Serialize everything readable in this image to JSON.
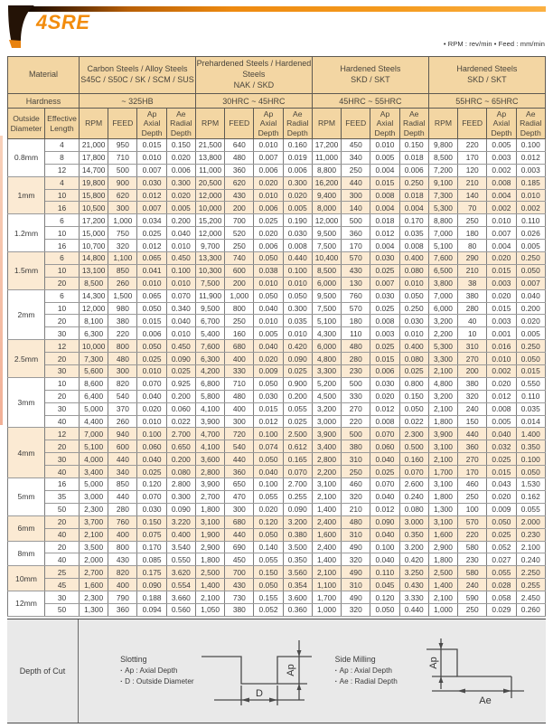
{
  "header": {
    "logo_text": "4SRE",
    "units_note": "• RPM : rev/min  • Feed : mm/min"
  },
  "colors": {
    "brand_orange": "#F28C0D",
    "header_tan": "#F3D6A3",
    "row_peach": "#FBEAD3"
  },
  "table": {
    "material_label": "Material",
    "hardness_label": "Hardness",
    "outside_diameter_label": "Outside\nDiameter",
    "effective_length_label": "Effective\nLength",
    "groups": [
      {
        "material": "Carbon Steels / Alloy Steels\nS45C / S50C / SK / SCM / SUS",
        "hardness": "~ 325HB"
      },
      {
        "material": "Prehardened Steels / Hardened\nSteels\nNAK / SKD",
        "hardness": "30HRC ~ 45HRC"
      },
      {
        "material": "Hardened Steels\nSKD / SKT",
        "hardness": "45HRC ~ 55HRC"
      },
      {
        "material": "Hardened Steels\nSKD / SKT",
        "hardness": "55HRC ~ 65HRC"
      }
    ],
    "subcolumns": [
      "RPM",
      "FEED",
      "Ap\nAxial\nDepth",
      "Ae\nRadial\nDepth"
    ],
    "rows": [
      {
        "diameter": "0.8mm",
        "entries": [
          {
            "len": "4",
            "v": [
              "21,000",
              "950",
              "0.015",
              "0.150",
              "21,500",
              "640",
              "0.010",
              "0.160",
              "17,200",
              "450",
              "0.010",
              "0.150",
              "9,800",
              "220",
              "0.005",
              "0.100"
            ]
          },
          {
            "len": "8",
            "v": [
              "17,800",
              "710",
              "0.010",
              "0.020",
              "13,800",
              "480",
              "0.007",
              "0.019",
              "11,000",
              "340",
              "0.005",
              "0.018",
              "8,500",
              "170",
              "0.003",
              "0.012"
            ]
          },
          {
            "len": "12",
            "v": [
              "14,700",
              "500",
              "0.007",
              "0.006",
              "11,000",
              "360",
              "0.006",
              "0.006",
              "8,800",
              "250",
              "0.004",
              "0.006",
              "7,200",
              "120",
              "0.002",
              "0.003"
            ]
          }
        ]
      },
      {
        "diameter": "1mm",
        "entries": [
          {
            "len": "4",
            "v": [
              "19,800",
              "900",
              "0.030",
              "0.300",
              "20,500",
              "620",
              "0.020",
              "0.300",
              "16,200",
              "440",
              "0.015",
              "0.250",
              "9,100",
              "210",
              "0.008",
              "0.185"
            ]
          },
          {
            "len": "10",
            "v": [
              "15,800",
              "620",
              "0.012",
              "0.020",
              "12,000",
              "430",
              "0.010",
              "0.020",
              "9,400",
              "300",
              "0.008",
              "0.018",
              "7,300",
              "140",
              "0.004",
              "0.010"
            ]
          },
          {
            "len": "16",
            "v": [
              "10,500",
              "300",
              "0.007",
              "0.005",
              "10,000",
              "200",
              "0.006",
              "0.005",
              "8,000",
              "140",
              "0.004",
              "0.004",
              "5,300",
              "70",
              "0.002",
              "0.002"
            ]
          }
        ]
      },
      {
        "diameter": "1.2mm",
        "entries": [
          {
            "len": "6",
            "v": [
              "17,200",
              "1,000",
              "0.034",
              "0.200",
              "15,200",
              "700",
              "0.025",
              "0.190",
              "12,000",
              "500",
              "0.018",
              "0.170",
              "8,800",
              "250",
              "0.010",
              "0.110"
            ]
          },
          {
            "len": "10",
            "v": [
              "15,000",
              "750",
              "0.025",
              "0.040",
              "12,000",
              "520",
              "0.020",
              "0.030",
              "9,500",
              "360",
              "0.012",
              "0.035",
              "7,000",
              "180",
              "0.007",
              "0.026"
            ]
          },
          {
            "len": "16",
            "v": [
              "10,700",
              "320",
              "0.012",
              "0.010",
              "9,700",
              "250",
              "0.006",
              "0.008",
              "7,500",
              "170",
              "0.004",
              "0.008",
              "5,100",
              "80",
              "0.004",
              "0.005"
            ]
          }
        ]
      },
      {
        "diameter": "1.5mm",
        "entries": [
          {
            "len": "6",
            "v": [
              "14,800",
              "1,100",
              "0.065",
              "0.450",
              "13,300",
              "740",
              "0.050",
              "0.440",
              "10,400",
              "570",
              "0.030",
              "0.400",
              "7,600",
              "290",
              "0.020",
              "0.250"
            ]
          },
          {
            "len": "10",
            "v": [
              "13,100",
              "850",
              "0.041",
              "0.100",
              "10,300",
              "600",
              "0.038",
              "0.100",
              "8,500",
              "430",
              "0.025",
              "0.080",
              "6,500",
              "210",
              "0.015",
              "0.050"
            ]
          },
          {
            "len": "20",
            "v": [
              "8,500",
              "260",
              "0.010",
              "0.010",
              "7,500",
              "200",
              "0.010",
              "0.010",
              "6,000",
              "130",
              "0.007",
              "0.010",
              "3,800",
              "38",
              "0.003",
              "0.007"
            ]
          }
        ]
      },
      {
        "diameter": "2mm",
        "entries": [
          {
            "len": "6",
            "v": [
              "14,300",
              "1,500",
              "0.065",
              "0.070",
              "11,900",
              "1,000",
              "0.050",
              "0.050",
              "9,500",
              "760",
              "0.030",
              "0.050",
              "7,000",
              "380",
              "0.020",
              "0.040"
            ]
          },
          {
            "len": "10",
            "v": [
              "12,000",
              "980",
              "0.050",
              "0.340",
              "9,500",
              "800",
              "0.040",
              "0.300",
              "7,500",
              "570",
              "0.025",
              "0.250",
              "6,000",
              "280",
              "0.015",
              "0.200"
            ]
          },
          {
            "len": "20",
            "v": [
              "8,100",
              "380",
              "0.015",
              "0.040",
              "6,700",
              "250",
              "0.010",
              "0.035",
              "5,100",
              "180",
              "0.008",
              "0.030",
              "3,200",
              "40",
              "0.003",
              "0.020"
            ]
          },
          {
            "len": "30",
            "v": [
              "6,300",
              "220",
              "0.006",
              "0.010",
              "5,400",
              "160",
              "0.005",
              "0.010",
              "4,300",
              "110",
              "0.003",
              "0.010",
              "2,200",
              "10",
              "0.001",
              "0.005"
            ]
          }
        ]
      },
      {
        "diameter": "2.5mm",
        "entries": [
          {
            "len": "12",
            "v": [
              "10,000",
              "800",
              "0.050",
              "0.450",
              "7,600",
              "680",
              "0.040",
              "0.420",
              "6,000",
              "480",
              "0.025",
              "0.400",
              "5,300",
              "310",
              "0.016",
              "0.250"
            ]
          },
          {
            "len": "20",
            "v": [
              "7,300",
              "480",
              "0.025",
              "0.090",
              "6,300",
              "400",
              "0.020",
              "0.090",
              "4,800",
              "280",
              "0.015",
              "0.080",
              "3,300",
              "270",
              "0.010",
              "0.050"
            ]
          },
          {
            "len": "30",
            "v": [
              "5,600",
              "300",
              "0.010",
              "0.025",
              "4,200",
              "330",
              "0.009",
              "0.025",
              "3,300",
              "230",
              "0.006",
              "0.025",
              "2,100",
              "200",
              "0.002",
              "0.015"
            ]
          }
        ]
      },
      {
        "diameter": "3mm",
        "entries": [
          {
            "len": "10",
            "v": [
              "8,600",
              "820",
              "0.070",
              "0.925",
              "6,800",
              "710",
              "0.050",
              "0.900",
              "5,200",
              "500",
              "0.030",
              "0.800",
              "4,800",
              "380",
              "0.020",
              "0.550"
            ]
          },
          {
            "len": "20",
            "v": [
              "6,400",
              "540",
              "0.040",
              "0.200",
              "5,800",
              "480",
              "0.030",
              "0.200",
              "4,500",
              "330",
              "0.020",
              "0.150",
              "3,200",
              "320",
              "0.012",
              "0.110"
            ]
          },
          {
            "len": "30",
            "v": [
              "5,000",
              "370",
              "0.020",
              "0.060",
              "4,100",
              "400",
              "0.015",
              "0.055",
              "3,200",
              "270",
              "0.012",
              "0.050",
              "2,100",
              "240",
              "0.008",
              "0.035"
            ]
          },
          {
            "len": "40",
            "v": [
              "4,400",
              "260",
              "0.010",
              "0.022",
              "3,900",
              "300",
              "0.012",
              "0.025",
              "3,000",
              "220",
              "0.008",
              "0.022",
              "1,800",
              "150",
              "0.005",
              "0.014"
            ]
          }
        ]
      },
      {
        "diameter": "4mm",
        "entries": [
          {
            "len": "12",
            "v": [
              "7,000",
              "940",
              "0.100",
              "2.700",
              "4,700",
              "720",
              "0.100",
              "2.500",
              "3,900",
              "500",
              "0.070",
              "2.300",
              "3,900",
              "440",
              "0.040",
              "1.400"
            ]
          },
          {
            "len": "20",
            "v": [
              "5,100",
              "600",
              "0.060",
              "0.650",
              "4,100",
              "540",
              "0.074",
              "0.612",
              "3,400",
              "380",
              "0.060",
              "0.500",
              "3,100",
              "360",
              "0.032",
              "0.350"
            ]
          },
          {
            "len": "30",
            "v": [
              "4,000",
              "440",
              "0.040",
              "0.200",
              "3,600",
              "440",
              "0.050",
              "0.165",
              "2,800",
              "310",
              "0.040",
              "0.160",
              "2,100",
              "270",
              "0.025",
              "0.100"
            ]
          },
          {
            "len": "40",
            "v": [
              "3,400",
              "340",
              "0.025",
              "0.080",
              "2,800",
              "360",
              "0.040",
              "0.070",
              "2,200",
              "250",
              "0.025",
              "0.070",
              "1,700",
              "170",
              "0.015",
              "0.050"
            ]
          }
        ]
      },
      {
        "diameter": "5mm",
        "entries": [
          {
            "len": "16",
            "v": [
              "5,000",
              "850",
              "0.120",
              "2.800",
              "3,900",
              "650",
              "0.100",
              "2.700",
              "3,100",
              "460",
              "0.070",
              "2.600",
              "3,100",
              "460",
              "0.043",
              "1.530"
            ]
          },
          {
            "len": "35",
            "v": [
              "3,000",
              "440",
              "0.070",
              "0.300",
              "2,700",
              "470",
              "0.055",
              "0.255",
              "2,100",
              "320",
              "0.040",
              "0.240",
              "1,800",
              "250",
              "0.020",
              "0.162"
            ]
          },
          {
            "len": "50",
            "v": [
              "2,300",
              "280",
              "0.030",
              "0.090",
              "1,800",
              "300",
              "0.020",
              "0.090",
              "1,400",
              "210",
              "0.012",
              "0.080",
              "1,300",
              "100",
              "0.009",
              "0.055"
            ]
          }
        ]
      },
      {
        "diameter": "6mm",
        "entries": [
          {
            "len": "20",
            "v": [
              "3,700",
              "760",
              "0.150",
              "3.220",
              "3,100",
              "680",
              "0.120",
              "3.200",
              "2,400",
              "480",
              "0.090",
              "3.000",
              "3,100",
              "570",
              "0.050",
              "2.000"
            ]
          },
          {
            "len": "40",
            "v": [
              "2,100",
              "400",
              "0.075",
              "0.400",
              "1,900",
              "440",
              "0.050",
              "0.380",
              "1,600",
              "310",
              "0.040",
              "0.350",
              "1,600",
              "220",
              "0.025",
              "0.230"
            ]
          }
        ]
      },
      {
        "diameter": "8mm",
        "entries": [
          {
            "len": "20",
            "v": [
              "3,500",
              "800",
              "0.170",
              "3.540",
              "2,900",
              "690",
              "0.140",
              "3.500",
              "2,400",
              "490",
              "0.100",
              "3.200",
              "2,900",
              "580",
              "0.052",
              "2.100"
            ]
          },
          {
            "len": "40",
            "v": [
              "2,000",
              "430",
              "0.085",
              "0.550",
              "1,800",
              "450",
              "0.055",
              "0.350",
              "1,400",
              "320",
              "0.040",
              "0.420",
              "1,800",
              "230",
              "0.027",
              "0.240"
            ]
          }
        ]
      },
      {
        "diameter": "10mm",
        "entries": [
          {
            "len": "25",
            "v": [
              "2,700",
              "820",
              "0.175",
              "3.620",
              "2,500",
              "700",
              "0.150",
              "3.560",
              "2,100",
              "490",
              "0.110",
              "3.250",
              "2,500",
              "580",
              "0.055",
              "2.250"
            ]
          },
          {
            "len": "45",
            "v": [
              "1,600",
              "400",
              "0.090",
              "0.554",
              "1,400",
              "430",
              "0.050",
              "0.354",
              "1,100",
              "310",
              "0.045",
              "0.430",
              "1,400",
              "240",
              "0.028",
              "0.255"
            ]
          }
        ]
      },
      {
        "diameter": "12mm",
        "entries": [
          {
            "len": "30",
            "v": [
              "2,300",
              "790",
              "0.188",
              "3.660",
              "2,100",
              "730",
              "0.155",
              "3.600",
              "1,700",
              "490",
              "0.120",
              "3.330",
              "2,100",
              "590",
              "0.058",
              "2.450"
            ]
          },
          {
            "len": "50",
            "v": [
              "1,300",
              "360",
              "0.094",
              "0.560",
              "1,050",
              "380",
              "0.052",
              "0.360",
              "1,000",
              "320",
              "0.050",
              "0.440",
              "1,000",
              "250",
              "0.029",
              "0.260"
            ]
          }
        ]
      }
    ]
  },
  "footer": {
    "label": "Depth of Cut",
    "slotting": {
      "title": "Slotting",
      "bullets": [
        "Ap : Axial Depth",
        "D : Outside Diameter"
      ],
      "ap_label": "Ap",
      "d_label": "D"
    },
    "side_milling": {
      "title": "Side Milling",
      "bullets": [
        "Ap : Axial Depth",
        "Ae : Radial Depth"
      ],
      "ap_label": "Ap",
      "ae_label": "Ae"
    }
  }
}
